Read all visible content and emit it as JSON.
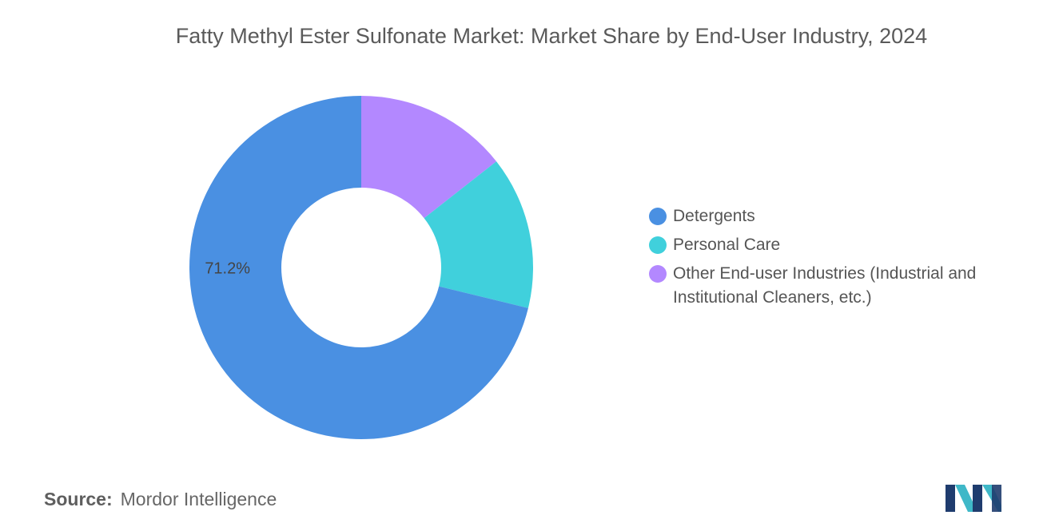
{
  "chart_data": {
    "type": "pie",
    "title": "Fatty Methyl Ester Sulfonate Market: Market Share by End-User Industry, 2024",
    "donut": true,
    "slices": [
      {
        "label": "Detergents",
        "value": 71.2,
        "color": "#4a90e2",
        "data_label": "71.2%"
      },
      {
        "label": "Personal Care",
        "value": 14.4,
        "color": "#40d0dc",
        "data_label": ""
      },
      {
        "label": "Other End-user Industries (Industrial and Institutional Cleaners, etc.)",
        "value": 14.4,
        "color": "#b388ff",
        "data_label": ""
      }
    ],
    "legend_position": "right"
  },
  "source": {
    "label": "Source:",
    "value": "Mordor Intelligence"
  },
  "logo": {
    "icon": "mordor-intelligence-logo-icon",
    "colors": [
      "#1f3c6e",
      "#3fb8c8"
    ]
  }
}
